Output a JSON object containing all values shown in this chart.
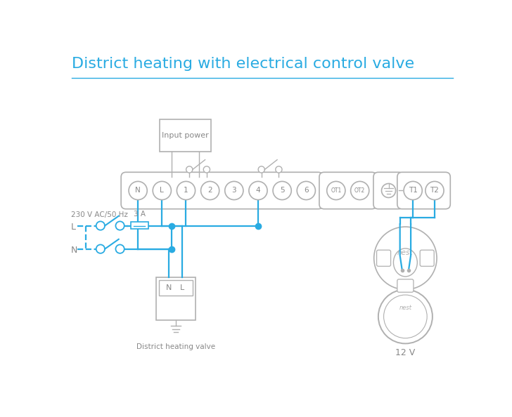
{
  "title": "District heating with electrical control valve",
  "title_color": "#29abe2",
  "wire_color": "#29abe2",
  "outline_color": "#b0b0b0",
  "text_color": "#888888",
  "bg_color": "#ffffff",
  "title_fontsize": 16,
  "term_labels": [
    "N",
    "L",
    "1",
    "2",
    "3",
    "4",
    "5",
    "6"
  ],
  "ot_labels": [
    "OT1",
    "OT2"
  ],
  "t_labels": [
    "T1",
    "T2"
  ],
  "label_230": "230 V AC/50 Hz",
  "label_3A": "3 A",
  "label_L": "L",
  "label_N": "N",
  "label_dhv": "District heating valve",
  "label_12V": "12 V",
  "label_input_power": "Input power",
  "label_nest": "nest"
}
